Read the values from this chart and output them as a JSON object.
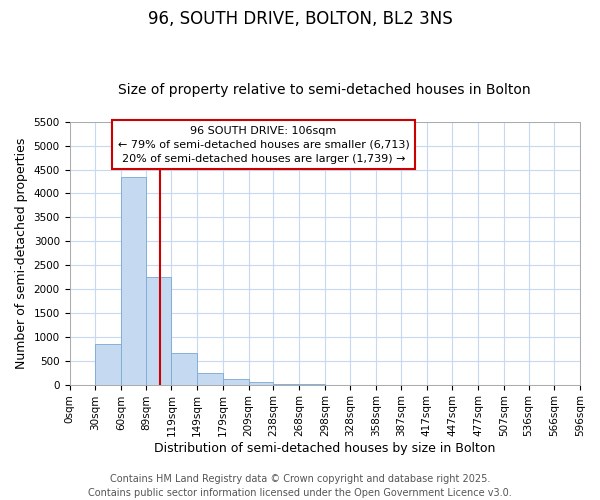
{
  "title": "96, SOUTH DRIVE, BOLTON, BL2 3NS",
  "subtitle": "Size of property relative to semi-detached houses in Bolton",
  "xlabel": "Distribution of semi-detached houses by size in Bolton",
  "ylabel": "Number of semi-detached properties",
  "property_size": 106,
  "annotation_title": "96 SOUTH DRIVE: 106sqm",
  "annotation_line1": "← 79% of semi-detached houses are smaller (6,713)",
  "annotation_line2": "20% of semi-detached houses are larger (1,739) →",
  "footer1": "Contains HM Land Registry data © Crown copyright and database right 2025.",
  "footer2": "Contains public sector information licensed under the Open Government Licence v3.0.",
  "bin_edges": [
    0,
    30,
    60,
    89,
    119,
    149,
    179,
    209,
    238,
    268,
    298,
    328,
    358,
    387,
    417,
    447,
    477,
    507,
    536,
    566,
    596
  ],
  "bin_labels": [
    "0sqm",
    "30sqm",
    "60sqm",
    "89sqm",
    "119sqm",
    "149sqm",
    "179sqm",
    "209sqm",
    "238sqm",
    "268sqm",
    "298sqm",
    "328sqm",
    "358sqm",
    "387sqm",
    "417sqm",
    "447sqm",
    "477sqm",
    "507sqm",
    "536sqm",
    "566sqm",
    "596sqm"
  ],
  "bar_heights": [
    0,
    850,
    4350,
    2250,
    670,
    250,
    120,
    50,
    20,
    5,
    0,
    0,
    0,
    0,
    0,
    0,
    0,
    0,
    0,
    0
  ],
  "bar_color": "#c5d9f0",
  "bar_edge_color": "#7aa8d4",
  "red_line_x": 106,
  "ylim": [
    0,
    5500
  ],
  "yticks": [
    0,
    500,
    1000,
    1500,
    2000,
    2500,
    3000,
    3500,
    4000,
    4500,
    5000,
    5500
  ],
  "bg_color": "#ffffff",
  "plot_bg_color": "#ffffff",
  "grid_color": "#c8d8ee",
  "title_fontsize": 12,
  "subtitle_fontsize": 10,
  "axis_label_fontsize": 9,
  "tick_fontsize": 7.5,
  "annotation_fontsize": 8,
  "footer_fontsize": 7
}
